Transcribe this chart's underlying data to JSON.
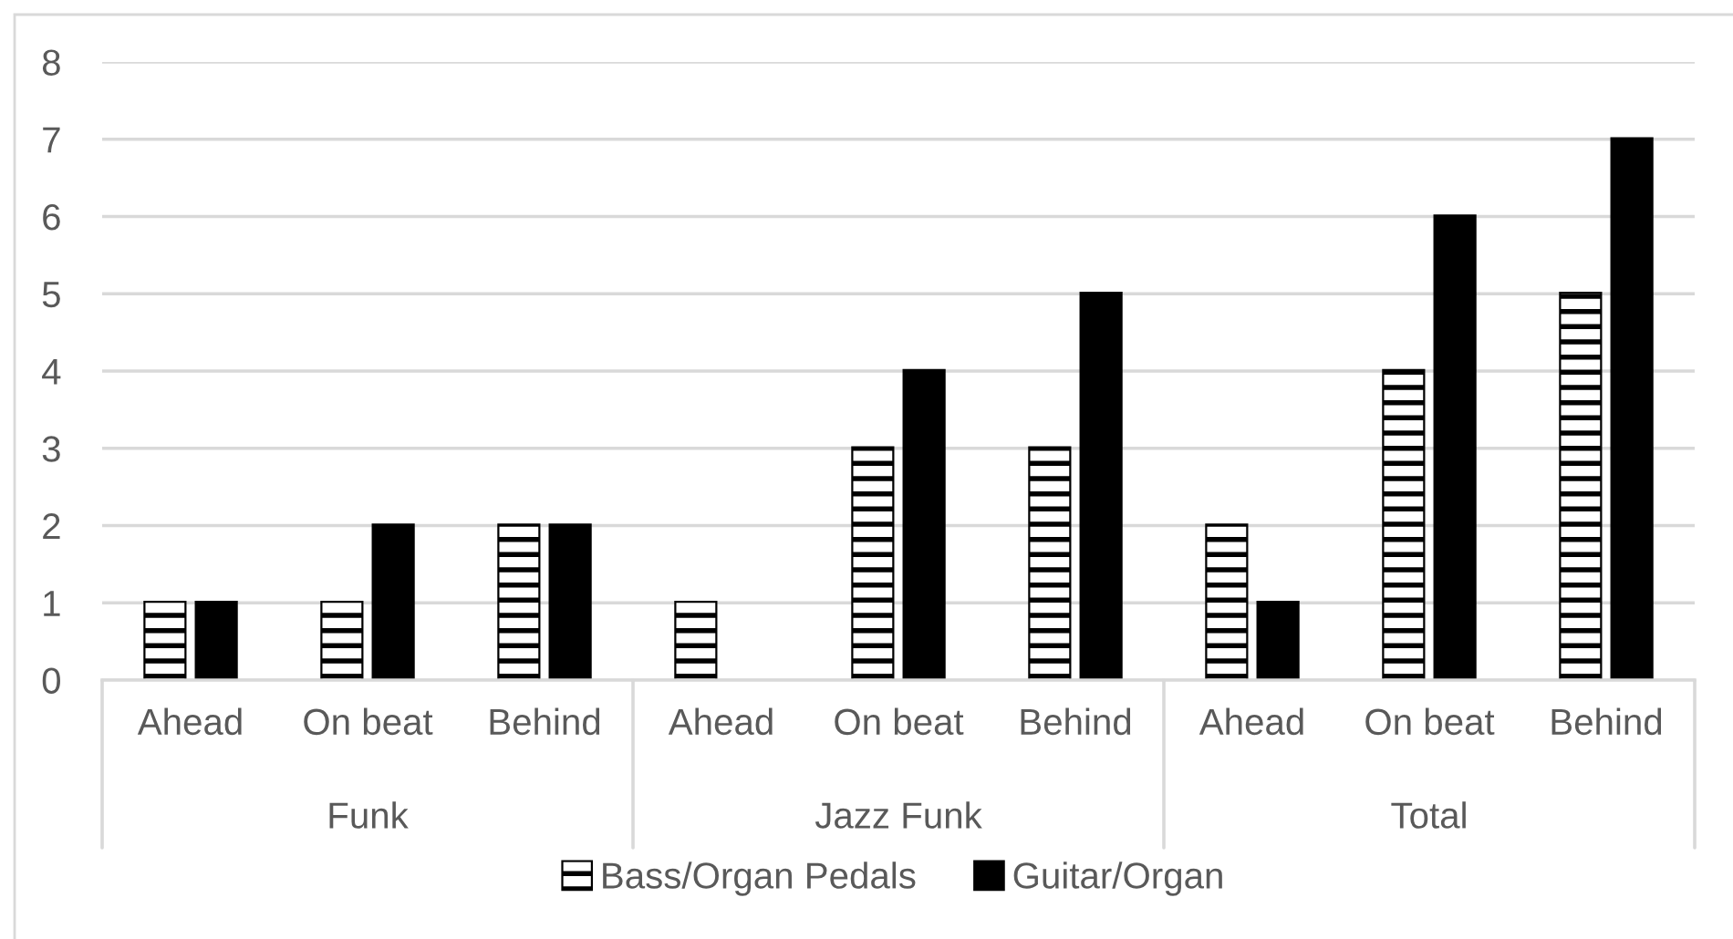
{
  "chart_data": {
    "type": "bar",
    "categories": [
      "Ahead",
      "On beat",
      "Behind",
      "Ahead",
      "On beat",
      "Behind",
      "Ahead",
      "On beat",
      "Behind"
    ],
    "series": [
      {
        "name": "Bass/Organ Pedals",
        "color": "#ffffff",
        "values": [
          1,
          1,
          2,
          1,
          3,
          3,
          2,
          4,
          5
        ]
      },
      {
        "name": "Guitar/Organ",
        "color": "#000000",
        "values": [
          1,
          2,
          2,
          null,
          4,
          5,
          1,
          6,
          7
        ]
      }
    ],
    "ylim": [
      0,
      8
    ],
    "yticks": [
      0,
      1,
      2,
      3,
      4,
      5,
      6,
      7,
      8
    ],
    "grid": "y",
    "legend": "bottom",
    "annotations": [
      "Funk",
      "Jazz Funk",
      "Total"
    ]
  }
}
